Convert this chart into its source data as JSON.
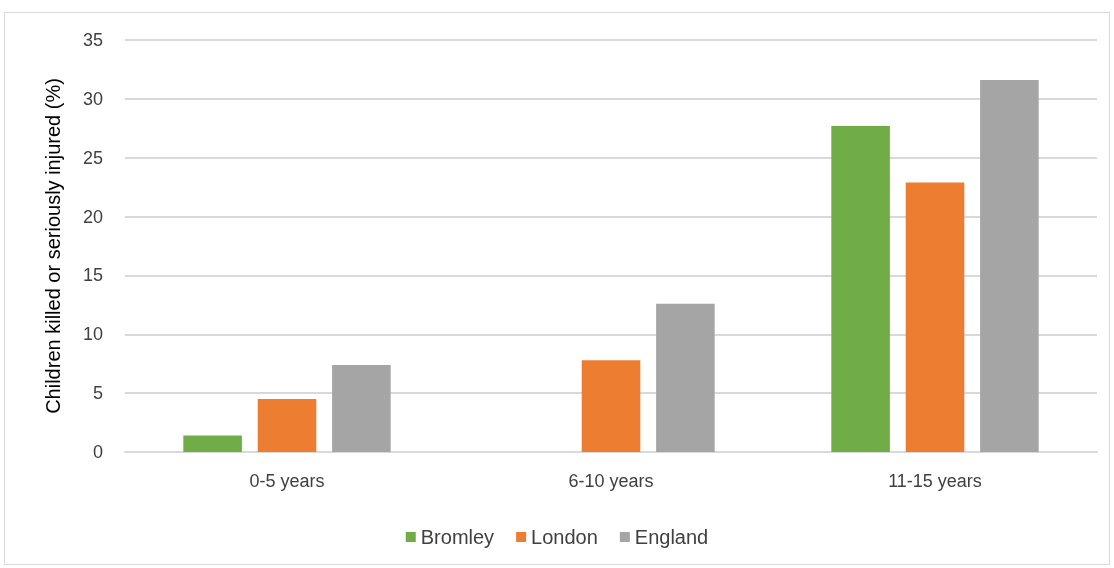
{
  "chart_data": {
    "type": "bar",
    "ylabel": "Children killed or seriously injured (%)",
    "categories": [
      "0-5 years",
      "6-10 years",
      "11-15 years"
    ],
    "series": [
      {
        "name": "Bromley",
        "color": "#70ad47",
        "values": [
          1.4,
          null,
          27.7
        ]
      },
      {
        "name": "London",
        "color": "#ed7d31",
        "values": [
          4.5,
          7.8,
          22.9
        ]
      },
      {
        "name": "England",
        "color": "#a5a5a5",
        "values": [
          7.4,
          12.6,
          31.6
        ]
      }
    ],
    "ylim": [
      0,
      35
    ],
    "yticks": [
      0,
      5,
      10,
      15,
      20,
      25,
      30,
      35
    ],
    "grid": "y",
    "legend": "bottom"
  }
}
